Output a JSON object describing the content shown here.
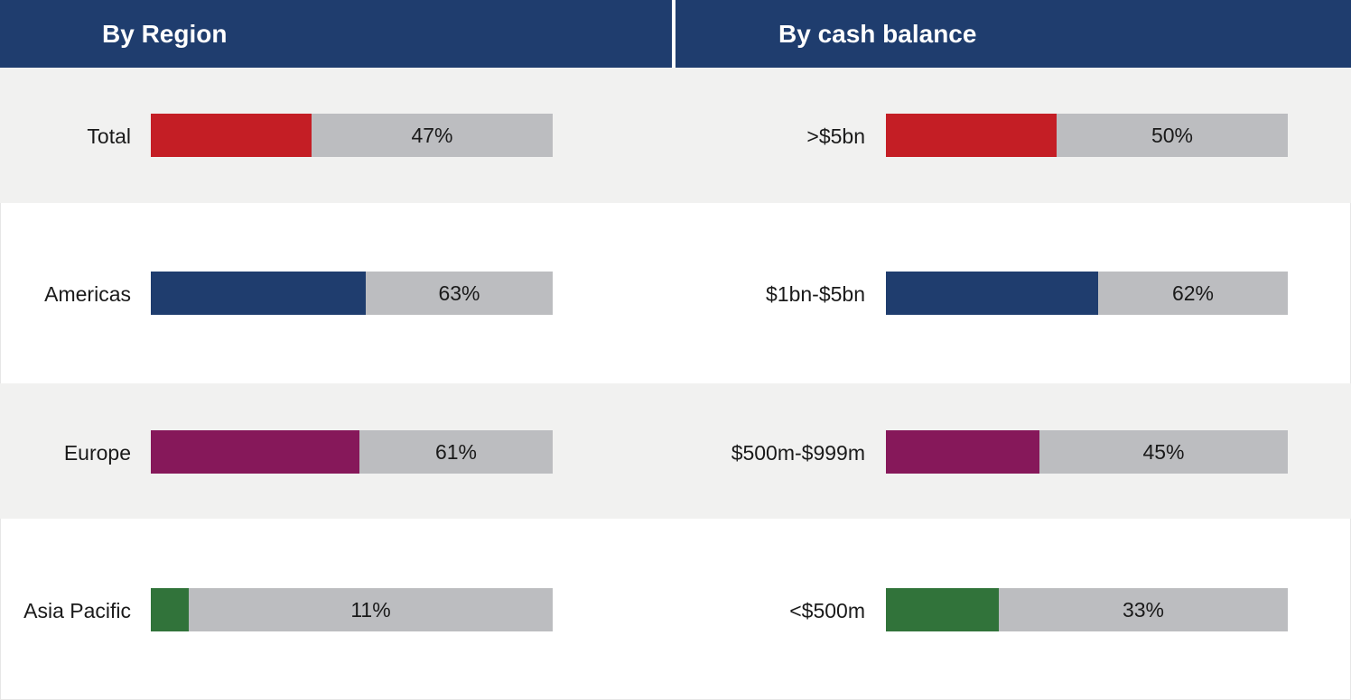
{
  "chart_data": [
    {
      "type": "bar",
      "orientation": "horizontal",
      "title": "By Region",
      "categories": [
        "Total",
        "Americas",
        "Europe",
        "Asia Pacific"
      ],
      "values": [
        47,
        63,
        61,
        11
      ],
      "value_labels": [
        "47%",
        "63%",
        "61%",
        "11%"
      ],
      "colors": [
        "#c41e25",
        "#1f3d6e",
        "#86185a",
        "#31733a"
      ],
      "xlim": [
        0,
        100
      ],
      "unit": "%"
    },
    {
      "type": "bar",
      "orientation": "horizontal",
      "title": "By cash balance",
      "categories": [
        ">$5bn",
        "$1bn-$5bn",
        "$500m-$999m",
        "<$500m"
      ],
      "values": [
        50,
        62,
        45,
        33
      ],
      "value_labels": [
        "50%",
        "62%",
        "45%",
        "33%"
      ],
      "colors": [
        "#c41e25",
        "#1f3d6e",
        "#86185a",
        "#31733a"
      ],
      "xlim": [
        0,
        100
      ],
      "unit": "%"
    }
  ],
  "colors": {
    "header_bg": "#1f3d6e",
    "track": "#bcbdc0",
    "band_shaded": "#f1f1f0"
  }
}
